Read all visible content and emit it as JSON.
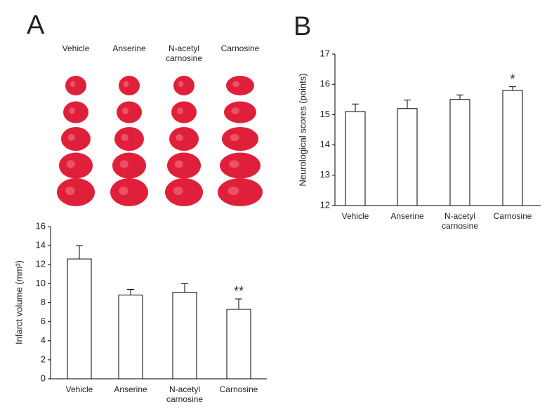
{
  "panel_labels": [
    "A",
    "B"
  ],
  "slices": {
    "labels": [
      "Vehicle",
      "Anserine",
      "N-acetyl\ncarnosine",
      "Carnosine"
    ]
  },
  "chart_data": [
    {
      "type": "bar",
      "ylabel": "Infarct volume (mm³)",
      "categories": [
        "Vehicle",
        "Anserine",
        "N-acetyl\ncarnosine",
        "Carnosine"
      ],
      "values": [
        12.6,
        8.8,
        9.1,
        7.3
      ],
      "errors": [
        1.4,
        0.6,
        0.9,
        1.1
      ],
      "significance": [
        null,
        null,
        null,
        "**"
      ],
      "color": "#ffffff",
      "ylim": [
        0,
        16
      ],
      "yticks": [
        0,
        2,
        4,
        6,
        8,
        10,
        12,
        14,
        16
      ]
    },
    {
      "type": "bar",
      "ylabel": "Neurological scores (points)",
      "categories": [
        "Vehicle",
        "Anserine",
        "N-acetyl\ncarnosine",
        "Carnosine"
      ],
      "values": [
        15.1,
        15.2,
        15.5,
        15.8
      ],
      "errors": [
        0.25,
        0.28,
        0.15,
        0.12
      ],
      "significance": [
        null,
        null,
        null,
        "*"
      ],
      "color": "#ffffff",
      "ylim": [
        12,
        17
      ],
      "yticks": [
        12,
        13,
        14,
        15,
        16,
        17
      ]
    }
  ]
}
